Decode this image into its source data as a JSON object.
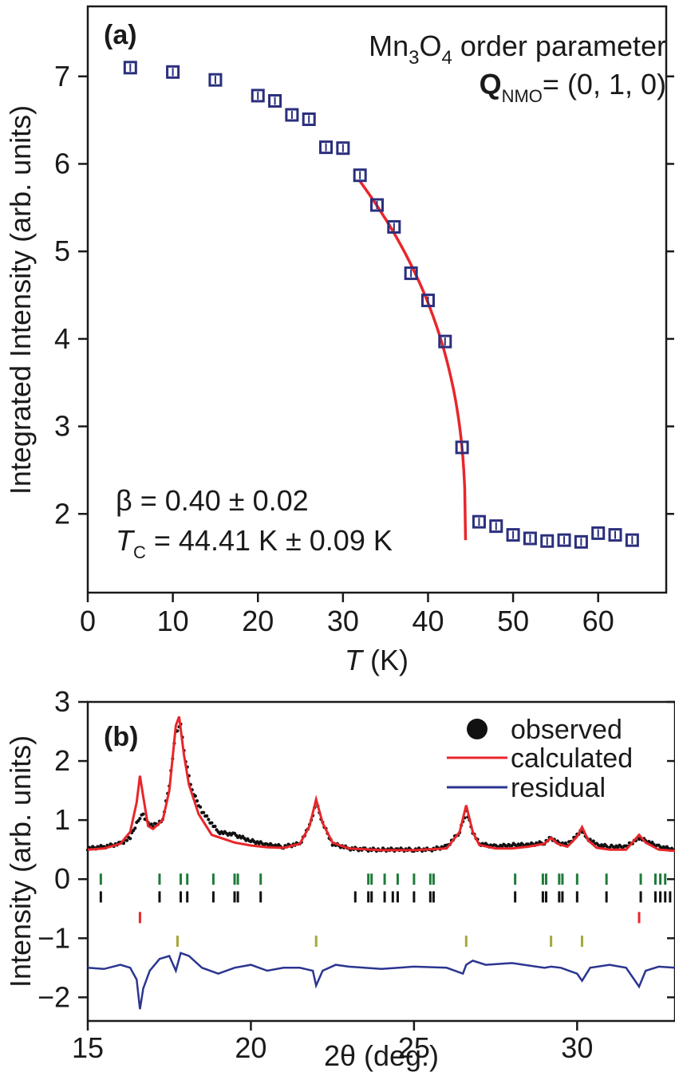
{
  "panel_a": {
    "label": "(a)",
    "annotation_title_main": "Mn",
    "annotation_title_sub1": "3",
    "annotation_title_mid": "O",
    "annotation_title_sub2": "4",
    "annotation_title_rest": " order parameter",
    "annotation_q_bold": "Q",
    "annotation_q_sub": "NMO",
    "annotation_q_rest": "= (0, 1, 0)",
    "beta_text": "β = 0.40 ± 0.02",
    "tc_italic": "T",
    "tc_sub": "C",
    "tc_rest": " = 44.41 K ± 0.09 K"
  },
  "panel_b": {
    "label": "(b)"
  },
  "colors": {
    "data_square": "#2b2f7d",
    "fit_line": "#e8262a",
    "residual": "#2b3590",
    "observed": "#111111",
    "tick_green": "#1f7a3a",
    "tick_black": "#111111",
    "tick_red": "#e8262a",
    "tick_olive": "#a8a83a"
  },
  "chart_data": [
    {
      "type": "scatter",
      "title": "",
      "xlabel_italic": "T",
      "xlabel_rest": " (K)",
      "ylabel": "Integrated Intensity (arb. units)",
      "xlim": [
        0,
        68
      ],
      "ylim": [
        1.1,
        7.8
      ],
      "xticks": [
        0,
        10,
        20,
        30,
        40,
        50,
        60
      ],
      "yticks": [
        2,
        3,
        4,
        5,
        6,
        7
      ],
      "x": [
        5,
        10,
        15,
        20,
        22,
        24,
        26,
        28,
        30,
        32,
        34,
        36,
        38,
        40,
        42,
        44,
        46,
        48,
        50,
        52,
        54,
        56,
        58,
        60,
        62,
        64
      ],
      "y": [
        7.1,
        7.05,
        6.96,
        6.78,
        6.72,
        6.56,
        6.51,
        6.19,
        6.18,
        5.87,
        5.53,
        5.28,
        4.75,
        4.44,
        3.97,
        2.76,
        1.91,
        1.86,
        1.76,
        1.72,
        1.69,
        1.7,
        1.68,
        1.78,
        1.76,
        1.7
      ],
      "fit": {
        "name": "",
        "model": "A*(1-T/Tc)^beta",
        "beta": 0.4,
        "beta_error": 0.02,
        "tc": 44.41,
        "tc_error": 0.09,
        "x_range": [
          32,
          44.41
        ],
        "baseline": 1.7
      }
    },
    {
      "type": "line",
      "title": "",
      "xlabel": "2θ (deg.)",
      "ylabel": "Intensity (arb. units)",
      "xlim": [
        15,
        33
      ],
      "ylim": [
        -2.4,
        3
      ],
      "xticks": [
        15,
        20,
        25,
        30
      ],
      "yticks": [
        -2,
        -1,
        0,
        1,
        2,
        3
      ],
      "legend_position": "top-right",
      "series": [
        {
          "name": "observed",
          "style": "dots",
          "x": [
            15.0,
            15.5,
            16.0,
            16.3,
            16.5,
            16.6,
            16.7,
            16.8,
            17.0,
            17.3,
            17.5,
            17.7,
            17.85,
            18.0,
            18.2,
            18.5,
            19.0,
            19.5,
            20.0,
            20.5,
            21.0,
            21.5,
            21.8,
            22.0,
            22.2,
            22.5,
            23.0,
            23.5,
            24.0,
            24.5,
            25.0,
            25.5,
            26.0,
            26.4,
            26.6,
            26.8,
            27.0,
            27.5,
            28.0,
            28.5,
            29.0,
            29.2,
            29.4,
            29.7,
            30.0,
            30.15,
            30.3,
            30.6,
            31.0,
            31.5,
            31.9,
            32.1,
            32.5,
            33.0
          ],
          "y": [
            0.52,
            0.55,
            0.6,
            0.7,
            0.95,
            1.05,
            1.1,
            0.98,
            0.9,
            1.0,
            1.6,
            2.5,
            2.6,
            2.0,
            1.5,
            1.15,
            0.8,
            0.75,
            0.65,
            0.58,
            0.55,
            0.6,
            0.9,
            1.3,
            0.95,
            0.6,
            0.52,
            0.5,
            0.5,
            0.5,
            0.5,
            0.5,
            0.55,
            0.8,
            1.15,
            0.8,
            0.6,
            0.55,
            0.58,
            0.58,
            0.62,
            0.7,
            0.62,
            0.58,
            0.75,
            0.82,
            0.7,
            0.58,
            0.55,
            0.55,
            0.7,
            0.65,
            0.55,
            0.5
          ]
        },
        {
          "name": "calculated",
          "style": "line",
          "x": [
            15.0,
            15.5,
            16.0,
            16.3,
            16.5,
            16.6,
            16.7,
            16.85,
            17.0,
            17.3,
            17.5,
            17.7,
            17.8,
            17.95,
            18.1,
            18.4,
            18.8,
            19.5,
            20.0,
            20.5,
            21.0,
            21.5,
            21.8,
            22.0,
            22.2,
            22.5,
            23.0,
            24.0,
            25.0,
            26.0,
            26.4,
            26.6,
            26.8,
            27.0,
            27.5,
            28.0,
            28.5,
            29.0,
            29.2,
            29.4,
            29.7,
            30.0,
            30.15,
            30.35,
            30.6,
            31.0,
            31.5,
            31.9,
            32.1,
            32.5,
            33.0
          ],
          "y": [
            0.5,
            0.52,
            0.6,
            0.8,
            1.3,
            1.75,
            1.4,
            0.9,
            0.85,
            1.0,
            1.5,
            2.6,
            2.75,
            2.1,
            1.6,
            1.1,
            0.75,
            0.62,
            0.57,
            0.54,
            0.53,
            0.6,
            0.9,
            1.35,
            0.95,
            0.62,
            0.52,
            0.49,
            0.49,
            0.52,
            0.8,
            1.25,
            0.8,
            0.58,
            0.52,
            0.52,
            0.55,
            0.6,
            0.7,
            0.6,
            0.55,
            0.72,
            0.88,
            0.65,
            0.53,
            0.5,
            0.5,
            0.75,
            0.62,
            0.5,
            0.48
          ]
        },
        {
          "name": "residual",
          "style": "line",
          "x": [
            15.0,
            15.5,
            16.0,
            16.3,
            16.5,
            16.6,
            16.7,
            16.9,
            17.2,
            17.5,
            17.7,
            17.85,
            18.1,
            18.5,
            19.0,
            19.5,
            20.0,
            20.5,
            21.0,
            21.5,
            21.9,
            22.0,
            22.2,
            22.6,
            23.0,
            24.0,
            25.0,
            26.0,
            26.5,
            26.6,
            26.8,
            27.2,
            28.0,
            29.0,
            29.2,
            29.5,
            30.0,
            30.15,
            30.4,
            31.0,
            31.5,
            31.9,
            32.1,
            32.5,
            33.0
          ],
          "y": [
            -1.5,
            -1.52,
            -1.45,
            -1.5,
            -1.7,
            -2.2,
            -1.85,
            -1.55,
            -1.35,
            -1.3,
            -1.55,
            -1.25,
            -1.3,
            -1.5,
            -1.6,
            -1.5,
            -1.45,
            -1.55,
            -1.5,
            -1.5,
            -1.55,
            -1.8,
            -1.55,
            -1.45,
            -1.48,
            -1.52,
            -1.48,
            -1.5,
            -1.6,
            -1.45,
            -1.38,
            -1.45,
            -1.42,
            -1.5,
            -1.48,
            -1.5,
            -1.6,
            -1.72,
            -1.5,
            -1.45,
            -1.5,
            -1.82,
            -1.55,
            -1.48,
            -1.5
          ]
        }
      ],
      "tick_rows": [
        {
          "color_key": "tick_green",
          "y": 0.0,
          "x": [
            15.4,
            17.2,
            17.85,
            18.05,
            18.85,
            19.5,
            19.6,
            20.3,
            23.6,
            23.7,
            24.1,
            24.5,
            25.0,
            25.5,
            25.6,
            28.1,
            28.95,
            29.05,
            29.45,
            29.55,
            30.0,
            30.9,
            31.95,
            32.4,
            32.55,
            32.7
          ]
        },
        {
          "color_key": "tick_black",
          "y": -0.3,
          "x": [
            15.4,
            17.2,
            17.85,
            18.05,
            18.85,
            19.5,
            19.6,
            20.3,
            23.2,
            23.6,
            23.7,
            24.1,
            24.35,
            24.5,
            25.0,
            25.5,
            25.6,
            28.1,
            28.95,
            29.05,
            29.45,
            29.55,
            30.0,
            30.9,
            31.95,
            32.4,
            32.55,
            32.7,
            32.85
          ]
        },
        {
          "color_key": "tick_red",
          "y": -0.65,
          "x": [
            16.6,
            31.9
          ]
        },
        {
          "color_key": "tick_olive",
          "y": -1.05,
          "x": [
            17.75,
            22.0,
            26.6,
            29.2,
            30.15
          ]
        }
      ]
    }
  ]
}
